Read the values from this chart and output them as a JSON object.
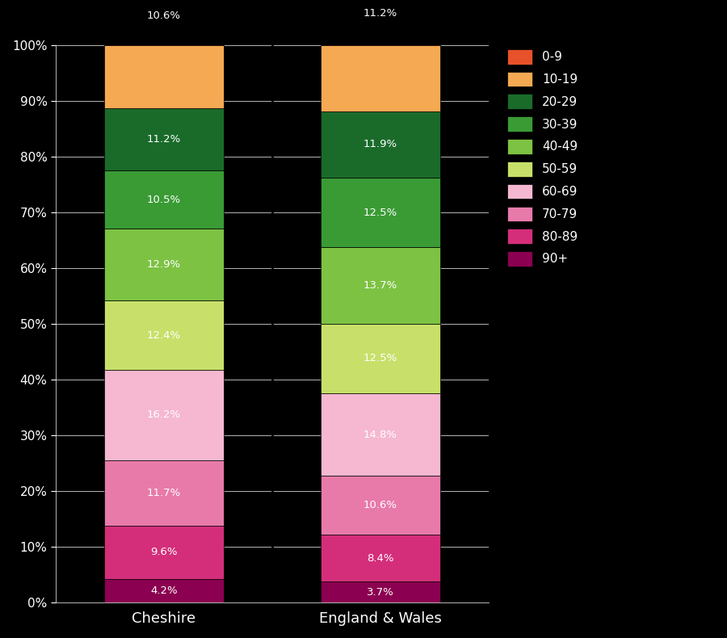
{
  "categories": [
    "Cheshire",
    "England & Wales"
  ],
  "stack_order": [
    "90+",
    "80-89",
    "70-79",
    "60-69",
    "50-59",
    "40-49",
    "30-39",
    "20-29",
    "10-19",
    "0-9"
  ],
  "values": {
    "Cheshire": {
      "90+": 4.2,
      "80-89": 9.6,
      "70-79": 11.7,
      "60-69": 16.2,
      "50-59": 12.4,
      "40-49": 12.9,
      "30-39": 10.5,
      "20-29": 11.2,
      "10-19": 11.2,
      "0-9": 10.6
    },
    "England & Wales": {
      "90+": 3.7,
      "80-89": 8.4,
      "70-79": 10.6,
      "60-69": 14.8,
      "50-59": 12.5,
      "40-49": 13.7,
      "30-39": 12.5,
      "20-29": 11.9,
      "10-19": 11.9,
      "0-9": 11.2
    }
  },
  "colors": {
    "0-9": "#E8522A",
    "10-19": "#F5A953",
    "20-29": "#1A6B2A",
    "30-39": "#3A9B35",
    "40-49": "#7DC243",
    "50-59": "#C8E06A",
    "60-69": "#F5B8D0",
    "70-79": "#E87AAA",
    "80-89": "#D42E7A",
    "90+": "#8B0050"
  },
  "legend_order": [
    "0-9",
    "10-19",
    "20-29",
    "30-39",
    "40-49",
    "50-59",
    "60-69",
    "70-79",
    "80-89",
    "90+"
  ],
  "background_color": "#000000",
  "text_color": "#ffffff",
  "bar_edge_color": "#000000",
  "label_color": "#ffffff",
  "figsize": [
    9.0,
    7.9
  ],
  "dpi": 100
}
